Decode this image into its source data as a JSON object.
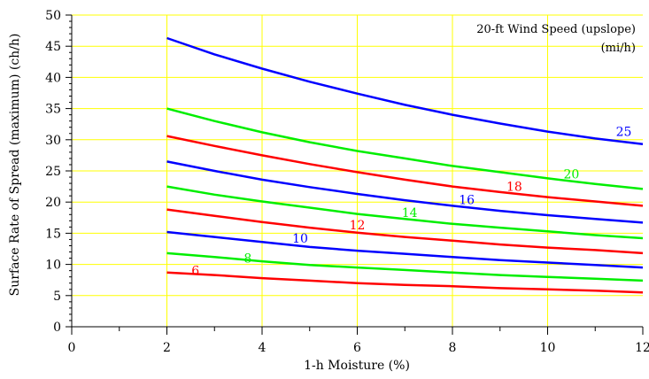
{
  "chart_data": {
    "type": "line",
    "title": "",
    "xlabel": "1-h Moisture (%)",
    "ylabel": "Surface Rate of Spread (maximum) (ch/h)",
    "xlim": [
      0,
      12
    ],
    "ylim": [
      0,
      50
    ],
    "x_ticks": [
      0,
      2,
      4,
      6,
      8,
      10,
      12
    ],
    "y_ticks": [
      0,
      5,
      10,
      15,
      20,
      25,
      30,
      35,
      40,
      45,
      50
    ],
    "grid": true,
    "legend_title_line1": "20-ft Wind Speed (upslope)",
    "legend_title_line2": "(mi/h)",
    "legend_placement": "top-right",
    "x": [
      2,
      3,
      4,
      5,
      6,
      7,
      8,
      9,
      10,
      11,
      12
    ],
    "series": [
      {
        "name": "6",
        "color": "#ff0000",
        "label_at": [
          2.6,
          8.3
        ],
        "values": [
          8.7,
          8.3,
          7.8,
          7.4,
          7.0,
          6.7,
          6.5,
          6.2,
          6.0,
          5.8,
          5.5
        ]
      },
      {
        "name": "8",
        "color": "#00ee00",
        "label_at": [
          3.7,
          10.3
        ],
        "values": [
          11.8,
          11.2,
          10.5,
          9.9,
          9.5,
          9.1,
          8.7,
          8.3,
          8.0,
          7.7,
          7.4
        ]
      },
      {
        "name": "10",
        "color": "#0000ff",
        "label_at": [
          4.8,
          13.5
        ],
        "values": [
          15.2,
          14.4,
          13.6,
          12.8,
          12.2,
          11.7,
          11.2,
          10.7,
          10.3,
          9.9,
          9.5
        ]
      },
      {
        "name": "12",
        "color": "#ff0000",
        "label_at": [
          6.0,
          15.6
        ],
        "values": [
          18.8,
          17.8,
          16.8,
          15.9,
          15.1,
          14.4,
          13.8,
          13.2,
          12.7,
          12.3,
          11.8
        ]
      },
      {
        "name": "14",
        "color": "#00ee00",
        "label_at": [
          7.1,
          17.6
        ],
        "values": [
          22.5,
          21.2,
          20.1,
          19.1,
          18.1,
          17.3,
          16.5,
          15.9,
          15.3,
          14.7,
          14.2
        ]
      },
      {
        "name": "16",
        "color": "#0000ff",
        "label_at": [
          8.3,
          19.7
        ],
        "values": [
          26.5,
          25.0,
          23.6,
          22.4,
          21.3,
          20.3,
          19.4,
          18.6,
          17.9,
          17.3,
          16.7
        ]
      },
      {
        "name": "18",
        "color": "#ff0000",
        "label_at": [
          9.3,
          21.8
        ],
        "values": [
          30.6,
          29.0,
          27.5,
          26.1,
          24.8,
          23.6,
          22.5,
          21.6,
          20.8,
          20.1,
          19.4
        ]
      },
      {
        "name": "20",
        "color": "#00ee00",
        "label_at": [
          10.5,
          23.8
        ],
        "values": [
          35.0,
          33.0,
          31.2,
          29.6,
          28.2,
          27.0,
          25.8,
          24.8,
          23.8,
          22.9,
          22.1
        ]
      },
      {
        "name": "25",
        "color": "#0000ff",
        "label_at": [
          11.6,
          30.6
        ],
        "values": [
          46.3,
          43.7,
          41.4,
          39.3,
          37.4,
          35.6,
          34.0,
          32.6,
          31.3,
          30.2,
          29.3
        ]
      }
    ]
  }
}
